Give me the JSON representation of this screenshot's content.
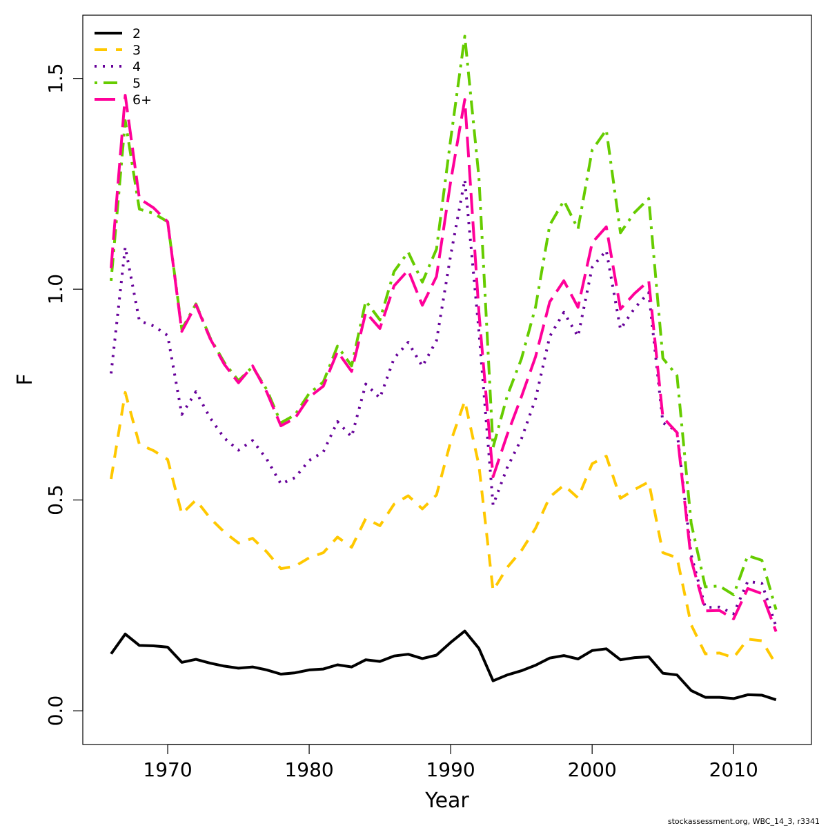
{
  "chart_data": {
    "type": "line",
    "title": "",
    "xlabel": "Year",
    "ylabel": "F",
    "xlim": [
      1964,
      2015.5
    ],
    "ylim": [
      -0.08,
      1.65
    ],
    "x_ticks": [
      1970,
      1980,
      1990,
      2000,
      2010
    ],
    "y_ticks": [
      0.0,
      0.5,
      1.0,
      1.5
    ],
    "x_tick_labels": [
      "1970",
      "1980",
      "1990",
      "2000",
      "2010"
    ],
    "y_tick_labels": [
      "0.0",
      "0.5",
      "1.0",
      "1.5"
    ],
    "grid": false,
    "legend_position": "top-left",
    "x": [
      1966,
      1967,
      1968,
      1969,
      1970,
      1971,
      1972,
      1973,
      1974,
      1975,
      1976,
      1977,
      1978,
      1979,
      1980,
      1981,
      1982,
      1983,
      1984,
      1985,
      1986,
      1987,
      1988,
      1989,
      1990,
      1991,
      1992,
      1993,
      1994,
      1995,
      1996,
      1997,
      1998,
      1999,
      2000,
      2001,
      2002,
      2003,
      2004,
      2005,
      2006,
      2007,
      2008,
      2009,
      2010,
      2011,
      2012,
      2013
    ],
    "series": [
      {
        "name": "2",
        "color": "#000000",
        "dash": "solid",
        "values": [
          0.135,
          0.182,
          0.155,
          0.154,
          0.151,
          0.115,
          0.122,
          0.113,
          0.106,
          0.101,
          0.104,
          0.097,
          0.087,
          0.09,
          0.097,
          0.099,
          0.109,
          0.104,
          0.121,
          0.117,
          0.13,
          0.134,
          0.124,
          0.132,
          0.162,
          0.189,
          0.148,
          0.071,
          0.085,
          0.095,
          0.108,
          0.125,
          0.131,
          0.123,
          0.143,
          0.147,
          0.121,
          0.126,
          0.128,
          0.089,
          0.085,
          0.048,
          0.032,
          0.032,
          0.029,
          0.038,
          0.037,
          0.026
        ]
      },
      {
        "name": "3",
        "color": "#ffc800",
        "dash": "dashed",
        "values": [
          0.55,
          0.755,
          0.632,
          0.617,
          0.596,
          0.467,
          0.5,
          0.457,
          0.424,
          0.398,
          0.409,
          0.377,
          0.337,
          0.343,
          0.363,
          0.375,
          0.412,
          0.388,
          0.456,
          0.439,
          0.49,
          0.51,
          0.479,
          0.512,
          0.638,
          0.735,
          0.582,
          0.285,
          0.34,
          0.38,
          0.433,
          0.507,
          0.535,
          0.505,
          0.586,
          0.604,
          0.504,
          0.525,
          0.543,
          0.375,
          0.363,
          0.204,
          0.135,
          0.137,
          0.126,
          0.17,
          0.166,
          0.11
        ]
      },
      {
        "name": "4",
        "color": "#660099",
        "dash": "dotted",
        "values": [
          0.8,
          1.1,
          0.925,
          0.913,
          0.89,
          0.703,
          0.757,
          0.695,
          0.647,
          0.618,
          0.641,
          0.597,
          0.538,
          0.553,
          0.594,
          0.614,
          0.686,
          0.65,
          0.775,
          0.742,
          0.836,
          0.874,
          0.817,
          0.878,
          1.08,
          1.26,
          0.9,
          0.488,
          0.577,
          0.645,
          0.74,
          0.888,
          0.945,
          0.888,
          1.052,
          1.092,
          0.905,
          0.955,
          0.992,
          0.683,
          0.663,
          0.37,
          0.245,
          0.246,
          0.23,
          0.307,
          0.302,
          0.2
        ]
      },
      {
        "name": "5",
        "color": "#66cc00",
        "dash": "dotdash",
        "values": [
          1.02,
          1.4,
          1.19,
          1.18,
          1.16,
          0.905,
          0.965,
          0.885,
          0.826,
          0.783,
          0.816,
          0.762,
          0.683,
          0.702,
          0.753,
          0.78,
          0.865,
          0.818,
          0.972,
          0.927,
          1.042,
          1.088,
          1.017,
          1.095,
          1.355,
          1.6,
          1.265,
          0.625,
          0.747,
          0.835,
          0.958,
          1.152,
          1.21,
          1.143,
          1.33,
          1.378,
          1.134,
          1.182,
          1.215,
          0.836,
          0.795,
          0.445,
          0.294,
          0.296,
          0.275,
          0.368,
          0.357,
          0.24
        ]
      },
      {
        "name": "6+",
        "color": "#ff0099",
        "dash": "longdash",
        "values": [
          1.05,
          1.46,
          1.215,
          1.193,
          1.16,
          0.9,
          0.963,
          0.883,
          0.822,
          0.778,
          0.818,
          0.756,
          0.676,
          0.694,
          0.744,
          0.77,
          0.852,
          0.805,
          0.945,
          0.907,
          1.008,
          1.045,
          0.962,
          1.03,
          1.255,
          1.45,
          0.945,
          0.555,
          0.655,
          0.745,
          0.84,
          0.97,
          1.02,
          0.957,
          1.11,
          1.148,
          0.953,
          0.99,
          1.02,
          0.696,
          0.66,
          0.358,
          0.237,
          0.238,
          0.218,
          0.29,
          0.278,
          0.188
        ]
      }
    ],
    "legend_entries": [
      "2",
      "3",
      "4",
      "5",
      "6+"
    ],
    "credit": "stockassessment.org, WBC_14_3, r3341"
  }
}
